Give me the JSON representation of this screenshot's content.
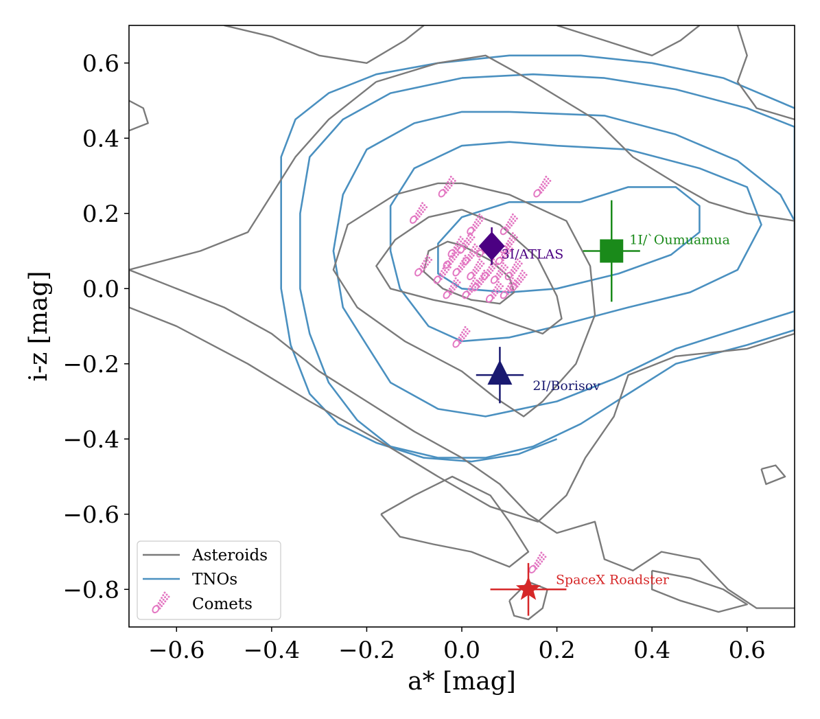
{
  "chart_data": {
    "type": "contour-scatter",
    "xlabel": "a* [mag]",
    "ylabel": "i-z [mag]",
    "xlim": [
      -0.7,
      0.7
    ],
    "ylim": [
      -0.9,
      0.7
    ],
    "xticks": [
      -0.6,
      -0.4,
      -0.2,
      0.0,
      0.2,
      0.4,
      0.6
    ],
    "yticks": [
      -0.8,
      -0.6,
      -0.4,
      -0.2,
      0.0,
      0.2,
      0.4,
      0.6
    ],
    "xtick_labels": [
      "−0.6",
      "−0.4",
      "−0.2",
      "0.0",
      "0.2",
      "0.4",
      "0.6"
    ],
    "ytick_labels": [
      "−0.8",
      "−0.6",
      "−0.4",
      "−0.2",
      "0.0",
      "0.2",
      "0.4",
      "0.6"
    ],
    "grid": false,
    "legend_position": "lower-left",
    "legend": [
      {
        "name": "Asteroids",
        "kind": "line",
        "color": "#7a7a7a"
      },
      {
        "name": "TNOs",
        "kind": "line",
        "color": "#4a90c0"
      },
      {
        "name": "Comets",
        "kind": "comet",
        "color": "#e377c2"
      }
    ],
    "asteroid_contours": [
      [
        [
          0.0,
          0.115
        ],
        [
          0.06,
          0.075
        ],
        [
          0.1,
          0.03
        ],
        [
          0.11,
          -0.01
        ],
        [
          0.08,
          -0.04
        ],
        [
          0.02,
          -0.03
        ],
        [
          -0.04,
          0.0
        ],
        [
          -0.08,
          0.045
        ],
        [
          -0.07,
          0.1
        ],
        [
          -0.03,
          0.125
        ],
        [
          0.0,
          0.115
        ]
      ],
      [
        [
          0.0,
          0.21
        ],
        [
          0.08,
          0.17
        ],
        [
          0.16,
          0.08
        ],
        [
          0.2,
          -0.02
        ],
        [
          0.21,
          -0.08
        ],
        [
          0.17,
          -0.12
        ],
        [
          0.1,
          -0.09
        ],
        [
          0.02,
          -0.05
        ],
        [
          -0.06,
          -0.03
        ],
        [
          -0.15,
          0.0
        ],
        [
          -0.18,
          0.06
        ],
        [
          -0.14,
          0.13
        ],
        [
          -0.07,
          0.19
        ],
        [
          0.0,
          0.21
        ]
      ],
      [
        [
          0.0,
          0.28
        ],
        [
          0.1,
          0.25
        ],
        [
          0.22,
          0.18
        ],
        [
          0.27,
          0.06
        ],
        [
          0.28,
          -0.07
        ],
        [
          0.24,
          -0.2
        ],
        [
          0.17,
          -0.3
        ],
        [
          0.13,
          -0.34
        ],
        [
          0.07,
          -0.29
        ],
        [
          0.0,
          -0.22
        ],
        [
          -0.12,
          -0.14
        ],
        [
          -0.22,
          -0.05
        ],
        [
          -0.27,
          0.05
        ],
        [
          -0.24,
          0.17
        ],
        [
          -0.14,
          0.25
        ],
        [
          -0.05,
          0.28
        ],
        [
          0.0,
          0.28
        ]
      ],
      [
        [
          -0.18,
          0.55
        ],
        [
          -0.05,
          0.6
        ],
        [
          0.05,
          0.62
        ],
        [
          0.15,
          0.55
        ],
        [
          0.28,
          0.45
        ],
        [
          0.36,
          0.35
        ],
        [
          0.45,
          0.28
        ],
        [
          0.52,
          0.23
        ],
        [
          0.6,
          0.2
        ],
        [
          0.7,
          0.18
        ],
        [
          0.7,
          -0.12
        ],
        [
          0.6,
          -0.16
        ],
        [
          0.45,
          -0.18
        ],
        [
          0.35,
          -0.23
        ],
        [
          0.32,
          -0.34
        ],
        [
          0.26,
          -0.45
        ],
        [
          0.22,
          -0.55
        ],
        [
          0.16,
          -0.62
        ],
        [
          0.06,
          -0.58
        ],
        [
          -0.05,
          -0.5
        ],
        [
          -0.18,
          -0.4
        ],
        [
          -0.32,
          -0.3
        ],
        [
          -0.45,
          -0.2
        ],
        [
          -0.6,
          -0.1
        ],
        [
          -0.7,
          -0.05
        ],
        [
          -0.7,
          0.05
        ],
        [
          -0.55,
          0.1
        ],
        [
          -0.45,
          0.15
        ],
        [
          -0.4,
          0.25
        ],
        [
          -0.35,
          0.35
        ],
        [
          -0.28,
          0.45
        ],
        [
          -0.18,
          0.55
        ]
      ],
      [
        [
          -0.5,
          0.7
        ],
        [
          -0.4,
          0.67
        ],
        [
          -0.3,
          0.62
        ],
        [
          -0.2,
          0.6
        ],
        [
          -0.12,
          0.66
        ],
        [
          -0.08,
          0.7
        ]
      ],
      [
        [
          0.2,
          0.7
        ],
        [
          0.3,
          0.66
        ],
        [
          0.4,
          0.62
        ],
        [
          0.46,
          0.66
        ],
        [
          0.5,
          0.7
        ]
      ],
      [
        [
          0.58,
          0.7
        ],
        [
          0.6,
          0.62
        ],
        [
          0.58,
          0.55
        ],
        [
          0.62,
          0.48
        ],
        [
          0.7,
          0.45
        ]
      ],
      [
        [
          -0.7,
          0.5
        ],
        [
          -0.67,
          0.48
        ],
        [
          -0.66,
          0.44
        ],
        [
          -0.7,
          0.42
        ]
      ],
      [
        [
          -0.7,
          0.05
        ],
        [
          -0.6,
          0.0
        ],
        [
          -0.5,
          -0.05
        ],
        [
          -0.4,
          -0.12
        ],
        [
          -0.3,
          -0.22
        ],
        [
          -0.2,
          -0.3
        ],
        [
          -0.1,
          -0.38
        ],
        [
          0.0,
          -0.45
        ],
        [
          0.08,
          -0.52
        ],
        [
          0.14,
          -0.6
        ],
        [
          0.2,
          -0.65
        ],
        [
          0.28,
          -0.62
        ],
        [
          0.3,
          -0.72
        ],
        [
          0.36,
          -0.75
        ],
        [
          0.42,
          -0.7
        ],
        [
          0.5,
          -0.72
        ],
        [
          0.56,
          -0.8
        ],
        [
          0.62,
          -0.85
        ],
        [
          0.7,
          -0.85
        ]
      ],
      [
        [
          -0.17,
          -0.6
        ],
        [
          -0.1,
          -0.55
        ],
        [
          -0.02,
          -0.5
        ],
        [
          0.06,
          -0.55
        ],
        [
          0.1,
          -0.62
        ],
        [
          0.14,
          -0.7
        ],
        [
          0.1,
          -0.74
        ],
        [
          0.02,
          -0.7
        ],
        [
          -0.06,
          -0.68
        ],
        [
          -0.13,
          -0.66
        ],
        [
          -0.17,
          -0.6
        ]
      ],
      [
        [
          0.1,
          -0.83
        ],
        [
          0.14,
          -0.78
        ],
        [
          0.18,
          -0.8
        ],
        [
          0.17,
          -0.85
        ],
        [
          0.14,
          -0.88
        ],
        [
          0.11,
          -0.87
        ],
        [
          0.1,
          -0.83
        ]
      ],
      [
        [
          0.4,
          -0.75
        ],
        [
          0.48,
          -0.77
        ],
        [
          0.55,
          -0.8
        ],
        [
          0.6,
          -0.84
        ],
        [
          0.54,
          -0.86
        ],
        [
          0.46,
          -0.83
        ],
        [
          0.4,
          -0.8
        ],
        [
          0.4,
          -0.75
        ]
      ],
      [
        [
          0.63,
          -0.48
        ],
        [
          0.66,
          -0.47
        ],
        [
          0.68,
          -0.5
        ],
        [
          0.64,
          -0.52
        ],
        [
          0.63,
          -0.48
        ]
      ]
    ],
    "tno_contours": [
      [
        [
          0.25,
          0.23
        ],
        [
          0.35,
          0.27
        ],
        [
          0.45,
          0.27
        ],
        [
          0.5,
          0.22
        ],
        [
          0.5,
          0.15
        ],
        [
          0.44,
          0.09
        ],
        [
          0.33,
          0.04
        ],
        [
          0.2,
          0.0
        ],
        [
          0.1,
          -0.01
        ],
        [
          0.0,
          0.0
        ],
        [
          -0.05,
          0.04
        ],
        [
          -0.05,
          0.12
        ],
        [
          0.0,
          0.19
        ],
        [
          0.1,
          0.23
        ],
        [
          0.25,
          0.23
        ]
      ],
      [
        [
          0.2,
          0.38
        ],
        [
          0.35,
          0.37
        ],
        [
          0.5,
          0.32
        ],
        [
          0.6,
          0.27
        ],
        [
          0.63,
          0.17
        ],
        [
          0.58,
          0.05
        ],
        [
          0.48,
          -0.01
        ],
        [
          0.35,
          -0.05
        ],
        [
          0.2,
          -0.1
        ],
        [
          0.1,
          -0.13
        ],
        [
          0.0,
          -0.14
        ],
        [
          -0.07,
          -0.1
        ],
        [
          -0.13,
          0.0
        ],
        [
          -0.15,
          0.1
        ],
        [
          -0.15,
          0.22
        ],
        [
          -0.1,
          0.32
        ],
        [
          0.0,
          0.38
        ],
        [
          0.1,
          0.39
        ],
        [
          0.2,
          0.38
        ]
      ],
      [
        [
          0.1,
          0.47
        ],
        [
          0.3,
          0.46
        ],
        [
          0.45,
          0.41
        ],
        [
          0.58,
          0.34
        ],
        [
          0.67,
          0.25
        ],
        [
          0.7,
          0.18
        ],
        [
          0.7,
          -0.06
        ],
        [
          0.6,
          -0.1
        ],
        [
          0.45,
          -0.16
        ],
        [
          0.32,
          -0.24
        ],
        [
          0.2,
          -0.3
        ],
        [
          0.05,
          -0.34
        ],
        [
          -0.05,
          -0.32
        ],
        [
          -0.15,
          -0.25
        ],
        [
          -0.2,
          -0.15
        ],
        [
          -0.25,
          -0.05
        ],
        [
          -0.27,
          0.1
        ],
        [
          -0.25,
          0.25
        ],
        [
          -0.2,
          0.37
        ],
        [
          -0.1,
          0.44
        ],
        [
          0.0,
          0.47
        ],
        [
          0.1,
          0.47
        ]
      ],
      [
        [
          0.0,
          0.56
        ],
        [
          0.15,
          0.57
        ],
        [
          0.3,
          0.56
        ],
        [
          0.45,
          0.53
        ],
        [
          0.6,
          0.48
        ],
        [
          0.7,
          0.43
        ],
        [
          0.7,
          -0.11
        ],
        [
          0.6,
          -0.15
        ],
        [
          0.45,
          -0.2
        ],
        [
          0.35,
          -0.28
        ],
        [
          0.25,
          -0.36
        ],
        [
          0.15,
          -0.42
        ],
        [
          0.05,
          -0.45
        ],
        [
          -0.05,
          -0.45
        ],
        [
          -0.15,
          -0.42
        ],
        [
          -0.22,
          -0.35
        ],
        [
          -0.28,
          -0.25
        ],
        [
          -0.32,
          -0.12
        ],
        [
          -0.34,
          0.0
        ],
        [
          -0.34,
          0.2
        ],
        [
          -0.32,
          0.35
        ],
        [
          -0.25,
          0.45
        ],
        [
          -0.15,
          0.52
        ],
        [
          0.0,
          0.56
        ]
      ],
      [
        [
          -0.05,
          0.6
        ],
        [
          0.1,
          0.62
        ],
        [
          0.25,
          0.62
        ],
        [
          0.4,
          0.6
        ],
        [
          0.55,
          0.56
        ],
        [
          0.7,
          0.48
        ]
      ],
      [
        [
          -0.05,
          0.6
        ],
        [
          -0.18,
          0.57
        ],
        [
          -0.28,
          0.52
        ],
        [
          -0.35,
          0.45
        ],
        [
          -0.38,
          0.35
        ],
        [
          -0.38,
          0.2
        ],
        [
          -0.38,
          0.0
        ],
        [
          -0.36,
          -0.15
        ],
        [
          -0.32,
          -0.28
        ],
        [
          -0.26,
          -0.36
        ],
        [
          -0.18,
          -0.41
        ],
        [
          -0.08,
          -0.45
        ],
        [
          0.02,
          -0.46
        ],
        [
          0.12,
          -0.44
        ],
        [
          0.2,
          -0.4
        ]
      ]
    ],
    "comets": [
      [
        -0.09,
        0.2
      ],
      [
        -0.03,
        0.27
      ],
      [
        0.03,
        0.17
      ],
      [
        0.1,
        0.17
      ],
      [
        0.17,
        0.27
      ],
      [
        -0.08,
        0.06
      ],
      [
        -0.04,
        0.04
      ],
      [
        -0.02,
        0.08
      ],
      [
        -0.01,
        0.11
      ],
      [
        0.0,
        0.06
      ],
      [
        0.01,
        0.12
      ],
      [
        0.02,
        0.09
      ],
      [
        0.03,
        0.05
      ],
      [
        0.04,
        0.02
      ],
      [
        0.05,
        0.11
      ],
      [
        0.06,
        0.05
      ],
      [
        0.07,
        -0.01
      ],
      [
        0.08,
        0.04
      ],
      [
        0.09,
        0.09
      ],
      [
        0.1,
        0.12
      ],
      [
        0.11,
        0.05
      ],
      [
        0.1,
        0.0
      ],
      [
        0.12,
        0.02
      ],
      [
        0.02,
        0.0
      ],
      [
        -0.02,
        0.0
      ],
      [
        0.0,
        -0.13
      ],
      [
        0.16,
        -0.73
      ]
    ],
    "objects": [
      {
        "name": "3I/ATLAS",
        "marker": "diamond",
        "color": "#4b0082",
        "x": 0.063,
        "y": 0.113,
        "xerr": 0.0,
        "yerr": 0.05
      },
      {
        "name": "1I/`Oumuamua",
        "marker": "square",
        "color": "#1a8a1a",
        "x": 0.315,
        "y": 0.1,
        "xerr": 0.06,
        "yerr": 0.135
      },
      {
        "name": "2I/Borisov",
        "marker": "triangle",
        "color": "#191970",
        "x": 0.08,
        "y": -0.23,
        "xerr": 0.05,
        "yerr": 0.075
      },
      {
        "name": "SpaceX Roadster",
        "marker": "star",
        "color": "#d62728",
        "x": 0.14,
        "y": -0.8,
        "xerr": 0.08,
        "yerr": 0.07
      }
    ]
  }
}
